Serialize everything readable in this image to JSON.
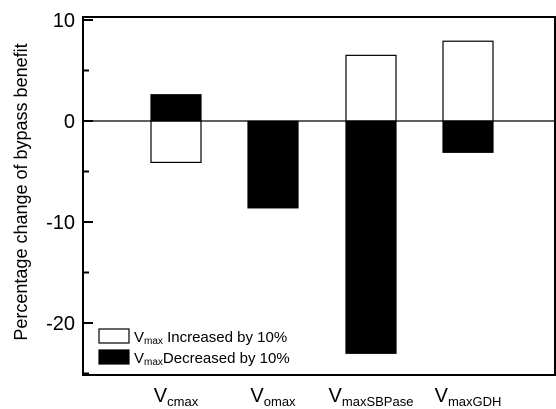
{
  "chart_data": {
    "type": "bar",
    "ylabel": "Percentage change of bypass benefit",
    "ylim": [
      -25,
      10
    ],
    "yticks": [
      10,
      0,
      -10,
      -20
    ],
    "ytick_labels": [
      "10",
      "0",
      "-10",
      "-20"
    ],
    "grid": false,
    "legend_position": "bottom-left",
    "categories": [
      {
        "main": "V",
        "sub": "cmax"
      },
      {
        "main": "V",
        "sub": "omax"
      },
      {
        "main": "V",
        "sub": "maxSBPase"
      },
      {
        "main": "V",
        "sub": "maxGDH"
      }
    ],
    "series": [
      {
        "name_main": "V",
        "name_sub": "max",
        "name_rest": " Increased by 10%",
        "color": "#ffffff",
        "values": [
          -4.1,
          0,
          6.5,
          7.9
        ]
      },
      {
        "name_main": "V",
        "name_sub": "max",
        "name_rest": "Decreased by 10%",
        "color": "#000000",
        "values": [
          2.6,
          -8.6,
          -23,
          -3.1
        ]
      }
    ]
  }
}
